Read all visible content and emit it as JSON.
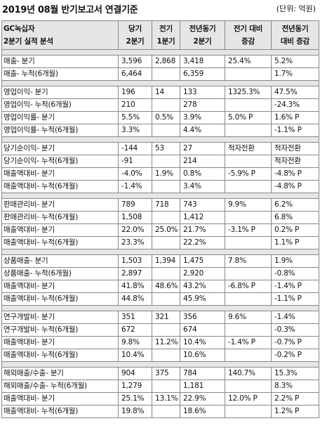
{
  "title": "2019년 08월 반기보고서 연결기준",
  "unit": "(단위: 억원)",
  "header": {
    "c0": [
      "GC녹십자",
      "2분기 실적 분석"
    ],
    "c1": [
      "당기",
      "2분기"
    ],
    "c2": [
      "전기",
      "1분기"
    ],
    "c3": [
      "전년동기",
      "2분기"
    ],
    "c4": [
      "전기 대비",
      "증감"
    ],
    "c5": [
      "전년동기",
      "대비 증감"
    ]
  },
  "groups": [
    [
      [
        "매출- 분기",
        "3,596",
        "2,868",
        "3,418",
        "25.4%",
        "5.2%"
      ],
      [
        "매출- 누적(6개월)",
        "6,464",
        "",
        "6,359",
        "",
        "1.7%"
      ]
    ],
    [
      [
        "영업이익- 분기",
        "196",
        "14",
        "133",
        "1325.3%",
        "47.5%"
      ],
      [
        "영업이익- 누적(6개월)",
        "210",
        "",
        "278",
        "",
        "-24.3%"
      ],
      [
        "영업이익률- 분기",
        "5.5%",
        "0.5%",
        "3.9%",
        "5.0% P",
        "1.6% P"
      ],
      [
        "영업이익률- 누적(6개월)",
        "3.3%",
        "",
        "4.4%",
        "",
        "-1.1% P"
      ]
    ],
    [
      [
        "당기순이익- 분기",
        "-144",
        "53",
        "27",
        "적자전환",
        "적자전환"
      ],
      [
        "당기순이익- 누적(6개월)",
        "-91",
        "",
        "214",
        "",
        "적자전환"
      ],
      [
        "매출액대비- 분기",
        "-4.0%",
        "1.9%",
        "0.8%",
        "-5.9% P",
        "-4.8% P"
      ],
      [
        "매출액대비- 누적(6개월)",
        "-1.4%",
        "",
        "3.4%",
        "",
        "-4.8% P"
      ]
    ],
    [
      [
        "판매관리비- 분기",
        "789",
        "718",
        "743",
        "9.9%",
        "6.2%"
      ],
      [
        "판매관리비- 누적(6개월)",
        "1,508",
        "",
        "1,412",
        "",
        "6.8%"
      ],
      [
        "매출액대비- 분기",
        "22.0%",
        "25.0%",
        "21.7%",
        "-3.1% P",
        "0.2% P"
      ],
      [
        "매출액대비- 누적(6개월)",
        "23.3%",
        "",
        "22.2%",
        "",
        "1.1% P"
      ]
    ],
    [
      [
        "상품매출- 분기",
        "1,503",
        "1,394",
        "1,475",
        "7.8%",
        "1.9%"
      ],
      [
        "상품매출- 누적(6개월)",
        "2,897",
        "",
        "2,920",
        "",
        "-0.8%"
      ],
      [
        "매출액대비- 분기",
        "41.8%",
        "48.6%",
        "43.2%",
        "-6.8% P",
        "-1.4% P"
      ],
      [
        "매출액대비- 누적(6개월)",
        "44.8%",
        "",
        "45.9%",
        "",
        "-1.1% P"
      ]
    ],
    [
      [
        "연구개발비- 분기",
        "351",
        "321",
        "356",
        "9.6%",
        "-1.4%"
      ],
      [
        "연구개발비- 누적(6개월)",
        "672",
        "",
        "674",
        "",
        "-0.3%"
      ],
      [
        "매출액대비- 분기",
        "9.8%",
        "11.2%",
        "10.4%",
        "-1.4% P",
        "-0.7% P"
      ],
      [
        "매출액대비- 누적(6개월)",
        "10.4%",
        "",
        "10.6%",
        "",
        "-0.2% P"
      ]
    ],
    [
      [
        "해외매출/수출- 분기",
        "904",
        "375",
        "784",
        "140.7%",
        "15.3%"
      ],
      [
        "해외매출/수출- 누적(6개월)",
        "1,279",
        "",
        "1,181",
        "",
        "8.3%"
      ],
      [
        "매출액대비- 분기",
        "25.1%",
        "13.1%",
        "22.9%",
        "12.0% P",
        "2.2% P"
      ],
      [
        "매출액대비- 누적(6개월)",
        "19.8%",
        "",
        "18.6%",
        "",
        "1.2% P"
      ]
    ]
  ]
}
